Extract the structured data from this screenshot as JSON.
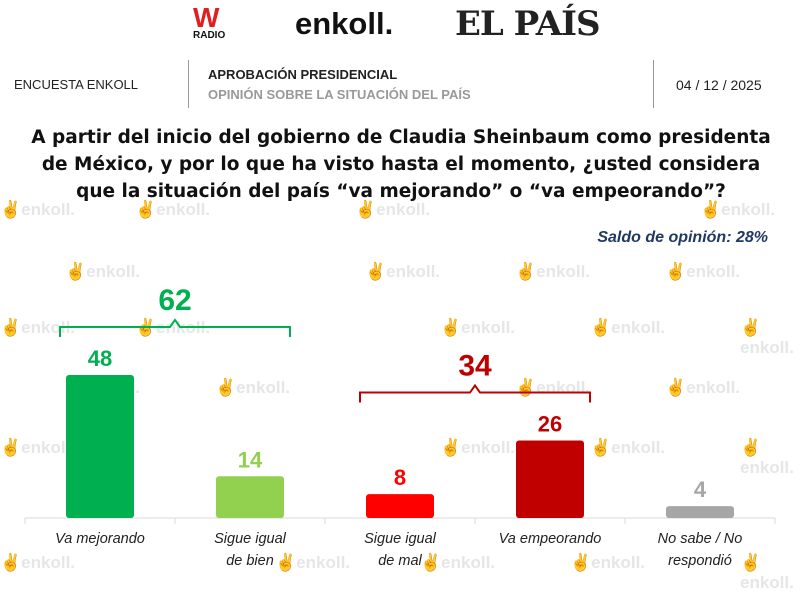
{
  "logos": {
    "w_radio": "W",
    "w_radio_sub": "RADIO",
    "enkoll": "enkoll.",
    "el_pais": "EL PAÍS"
  },
  "header": {
    "left": "ENCUESTA ENKOLL",
    "title": "APROBACIÓN PRESIDENCIAL",
    "subtitle": "OPINIÓN SOBRE LA SITUACIÓN DEL PAÍS",
    "date": "04 / 12 / 2025"
  },
  "watermark": "enkoll.",
  "chart_data": {
    "type": "bar",
    "title": "A partir del inicio del gobierno de Claudia Sheinbaum como presidenta de México, y por lo que ha visto hasta el momento, ¿usted considera que la situación del país “va mejorando” o “va empeorando”?",
    "annotation": "Saldo de opinión: 28%",
    "categories": [
      "Va mejorando",
      "Sigue igual de bien",
      "Sigue igual de mal",
      "Va empeorando",
      "No sabe / No respondió"
    ],
    "label_lines": [
      [
        "Va mejorando"
      ],
      [
        "Sigue igual",
        "de bien"
      ],
      [
        "Sigue igual",
        "de mal"
      ],
      [
        "Va empeorando"
      ],
      [
        "No sabe / No",
        "respondió"
      ]
    ],
    "values": [
      48,
      14,
      8,
      26,
      4
    ],
    "colors": [
      "#00b050",
      "#92d050",
      "#ff0000",
      "#c00000",
      "#a6a6a6"
    ],
    "groups": [
      {
        "label": "62",
        "from": 0,
        "to": 1,
        "color": "#00b050"
      },
      {
        "label": "34",
        "from": 2,
        "to": 3,
        "color": "#c00000"
      }
    ],
    "ylim": [
      0,
      50
    ],
    "xlabel": "",
    "ylabel": ""
  }
}
